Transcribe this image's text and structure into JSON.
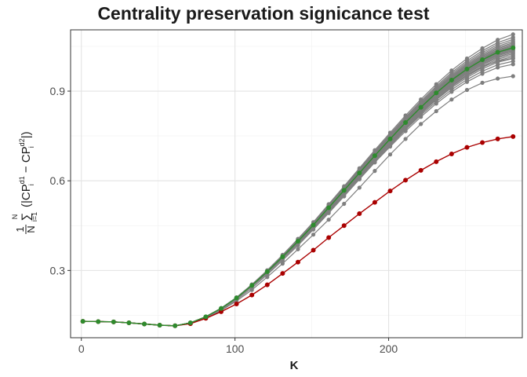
{
  "chart_data": {
    "type": "line",
    "title": "Centrality preservation signicance test",
    "xlabel": "K",
    "ylabel": "1/N Σ_{i=1}^{N} (|CP_i^{d1} − CP_i^{d2}|)",
    "xlim": [
      -7,
      287
    ],
    "ylim": [
      0.075,
      1.105
    ],
    "x_ticks": [
      0,
      100,
      200
    ],
    "y_ticks": [
      0.3,
      0.6,
      0.9
    ],
    "grid": true,
    "x": [
      1,
      11,
      21,
      31,
      41,
      51,
      61,
      71,
      81,
      91,
      101,
      111,
      121,
      131,
      141,
      151,
      161,
      171,
      181,
      191,
      201,
      211,
      221,
      231,
      241,
      251,
      261,
      271,
      281
    ],
    "reference_series": {
      "color": "#aa0000",
      "values": [
        0.13,
        0.129,
        0.128,
        0.125,
        0.121,
        0.117,
        0.115,
        0.122,
        0.14,
        0.162,
        0.188,
        0.218,
        0.252,
        0.29,
        0.328,
        0.368,
        0.41,
        0.45,
        0.49,
        0.528,
        0.566,
        0.602,
        0.635,
        0.664,
        0.69,
        0.712,
        0.728,
        0.74,
        0.748
      ]
    },
    "mean_series": {
      "color": "#2e8b2e",
      "values": [
        0.13,
        0.129,
        0.128,
        0.125,
        0.121,
        0.117,
        0.115,
        0.125,
        0.145,
        0.173,
        0.208,
        0.25,
        0.296,
        0.346,
        0.398,
        0.452,
        0.51,
        0.568,
        0.626,
        0.684,
        0.74,
        0.795,
        0.846,
        0.894,
        0.937,
        0.974,
        1.005,
        1.03,
        1.045
      ]
    },
    "random_series_color": "#7f7f7f",
    "random_series_offsets": [
      0.045,
      0.035,
      0.028,
      0.022,
      0.017,
      0.013,
      0.009,
      0.006,
      0.003,
      0.0,
      -0.003,
      -0.006,
      -0.009,
      -0.012,
      -0.016,
      -0.02,
      -0.025,
      -0.03,
      -0.036,
      -0.045,
      -0.055
    ],
    "random_outliers": [
      {
        "values": [
          0.13,
          0.129,
          0.128,
          0.125,
          0.121,
          0.117,
          0.115,
          0.122,
          0.14,
          0.166,
          0.198,
          0.235,
          0.278,
          0.323,
          0.371,
          0.42,
          0.47,
          0.523,
          0.577,
          0.633,
          0.688,
          0.74,
          0.79,
          0.833,
          0.872,
          0.904,
          0.928,
          0.942,
          0.95
        ]
      },
      {
        "values": [
          0.13,
          0.129,
          0.128,
          0.125,
          0.121,
          0.117,
          0.115,
          0.123,
          0.142,
          0.168,
          0.202,
          0.241,
          0.286,
          0.334,
          0.384,
          0.437,
          0.492,
          0.548,
          0.605,
          0.662,
          0.718,
          0.773,
          0.824,
          0.872,
          0.916,
          0.953,
          0.982,
          1.0,
          1.01
        ]
      }
    ]
  }
}
